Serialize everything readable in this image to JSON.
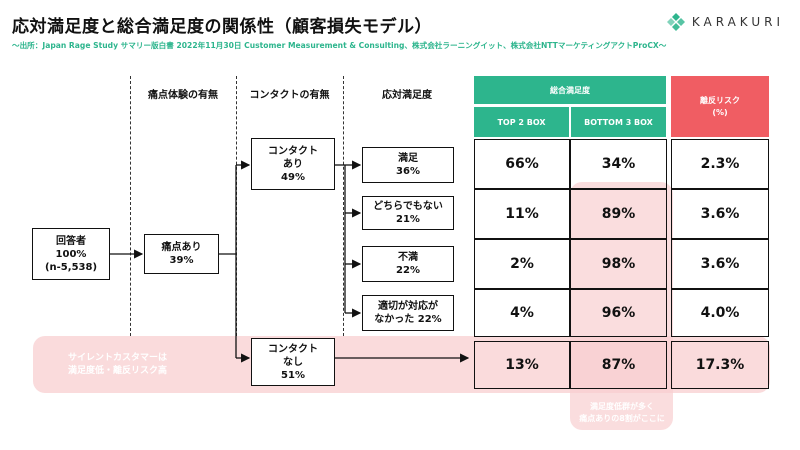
{
  "title": "応対満足度と総合満足度の関係性（顧客損失モデル）",
  "subtitle": "〜出所：Japan Rage Study サマリー版白書 2022年11月30日 Customer Measurement & Consulting、株式会社ラーニングイット、株式会社NTTマーケティングアクトProCX〜",
  "logo": {
    "text": "KARAKURI",
    "icon": "karakuri-diamond-icon",
    "color": "#2db58d"
  },
  "columns": {
    "pain": "痛点体験の有無",
    "contact": "コンタクトの有無",
    "satisfaction": "応対満足度"
  },
  "table_header": {
    "overall": "総合満足度",
    "top2": "TOP 2 BOX",
    "bottom3": "BOTTOM 3 BOX",
    "risk_line1": "離反リスク",
    "risk_line2": "(%)"
  },
  "colors": {
    "green": "#2db58d",
    "red": "#f05d63",
    "pink": "#f8cfd0"
  },
  "respondents": {
    "line1": "回答者",
    "line2": "100%",
    "line3": "(n-5,538)"
  },
  "pain_yes": {
    "line1": "痛点あり",
    "line2": "39%"
  },
  "contact_yes": {
    "line1": "コンタクト",
    "line2": "あり",
    "line3": "49%"
  },
  "contact_no": {
    "line1": "コンタクト",
    "line2": "なし",
    "line3": "51%"
  },
  "satisfaction_levels": [
    {
      "line1": "満足",
      "line2": "36%"
    },
    {
      "line1": "どちらでもない",
      "line2": "21%"
    },
    {
      "line1": "不満",
      "line2": "22%"
    },
    {
      "line1": "適切が対応が",
      "line2": "なかった 22%"
    }
  ],
  "rows": [
    {
      "top2": "66%",
      "bottom3": "34%",
      "risk": "2.3%"
    },
    {
      "top2": "11%",
      "bottom3": "89%",
      "risk": "3.6%"
    },
    {
      "top2": "2%",
      "bottom3": "98%",
      "risk": "3.6%"
    },
    {
      "top2": "4%",
      "bottom3": "96%",
      "risk": "4.0%"
    },
    {
      "top2": "13%",
      "bottom3": "87%",
      "risk": "17.3%"
    }
  ],
  "silent_note": {
    "line1": "サイレントカスタマーは",
    "line2": "満足度低・離反リスク高"
  },
  "bottom_note": {
    "line1": "満足度低群が多く",
    "line2": "痛点ありの8割がここに"
  }
}
